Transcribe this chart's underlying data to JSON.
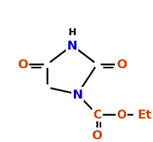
{
  "bg_color": "#ffffff",
  "bond_color": "#000000",
  "n_color": "#0000bb",
  "o_color": "#cc4400",
  "bond_lw": 1.8,
  "figsize": [
    2.21,
    2.07
  ],
  "dpi": 100,
  "xlim": [
    0,
    221
  ],
  "ylim": [
    0,
    207
  ]
}
